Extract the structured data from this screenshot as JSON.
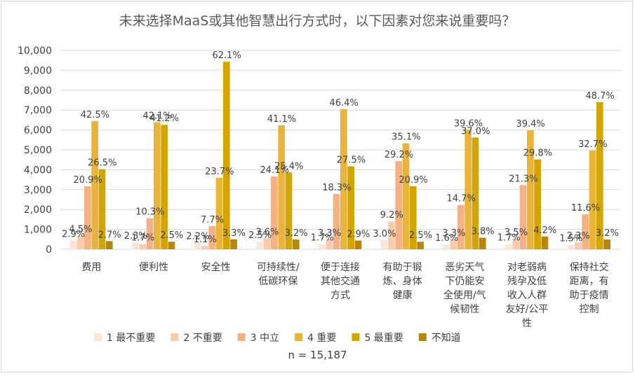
{
  "chart_data": {
    "type": "bar",
    "title": "未来选择MaaS或其他智慧出行方式时，以下因素对您来说重要吗？",
    "xlabel": "",
    "ylabel": "",
    "ylim": [
      0,
      10000
    ],
    "yticks": [
      0,
      1000,
      2000,
      3000,
      4000,
      5000,
      6000,
      7000,
      8000,
      9000,
      10000
    ],
    "ytick_labels": [
      "0",
      "1,000",
      "2,000",
      "3,000",
      "4,000",
      "5,000",
      "6,000",
      "7,000",
      "8,000",
      "9,000",
      "10,000"
    ],
    "grid": true,
    "legend_position": "bottom",
    "categories": [
      [
        "费用"
      ],
      [
        "便利性"
      ],
      [
        "安全性"
      ],
      [
        "可持续性/",
        "低碳环保"
      ],
      [
        "便于连接",
        "其他交通",
        "方式"
      ],
      [
        "有助于锻",
        "炼、身体",
        "健康"
      ],
      [
        "恶劣天气",
        "下仍能安",
        "全使用/气",
        "候韧性"
      ],
      [
        "对老弱病",
        "残孕及低",
        "收入人群",
        "友好/公平",
        "性"
      ],
      [
        "保持社交",
        "距离，有",
        "助于疫情",
        "控制"
      ]
    ],
    "series": [
      {
        "name": "1 最不重要",
        "color": "#fbe5d6",
        "values": [
          440,
          350,
          330,
          380,
          260,
          460,
          240,
          260,
          230
        ],
        "labels": [
          "2.9%",
          "2.3%",
          "2.2%",
          "2.5%",
          "1.7%",
          "3.0%",
          "1.6%",
          "1.7%",
          "1.5%"
        ]
      },
      {
        "name": "2 不重要",
        "color": "#f8cbad",
        "values": [
          680,
          260,
          170,
          550,
          500,
          1400,
          500,
          530,
          350
        ],
        "labels": [
          "4.5%",
          "1.7%",
          "1.1%",
          "3.6%",
          "3.3%",
          "9.2%",
          "3.3%",
          "3.5%",
          "2.3%"
        ]
      },
      {
        "name": "3 中立",
        "color": "#f4b183",
        "values": [
          3170,
          1560,
          1170,
          3660,
          2780,
          4430,
          2230,
          3230,
          1760
        ],
        "labels": [
          "20.9%",
          "10.3%",
          "7.7%",
          "24.1%",
          "18.3%",
          "29.2%",
          "14.7%",
          "21.3%",
          "11.6%"
        ]
      },
      {
        "name": "4 重要",
        "color": "#e8b43c",
        "values": [
          6450,
          6390,
          3600,
          6240,
          7050,
          5330,
          6010,
          5980,
          4970
        ],
        "labels": [
          "42.5%",
          "42.1%",
          "23.7%",
          "41.1%",
          "46.4%",
          "35.1%",
          "39.6%",
          "39.4%",
          "32.7%"
        ]
      },
      {
        "name": "5 最重要",
        "color": "#d4a500",
        "values": [
          4030,
          6260,
          9430,
          3860,
          4170,
          3170,
          5620,
          4520,
          7400
        ],
        "labels": [
          "26.5%",
          "41.2%",
          "62.1%",
          "25.4%",
          "27.5%",
          "20.9%",
          "37.0%",
          "29.8%",
          "48.7%"
        ]
      },
      {
        "name": "不知道",
        "color": "#b8860b",
        "values": [
          410,
          380,
          500,
          490,
          440,
          380,
          580,
          640,
          490
        ],
        "labels": [
          "2.7%",
          "2.5%",
          "3.3%",
          "3.2%",
          "2.9%",
          "2.5%",
          "3.8%",
          "4.2%",
          "3.2%"
        ]
      }
    ],
    "note": "n = 15,187"
  }
}
